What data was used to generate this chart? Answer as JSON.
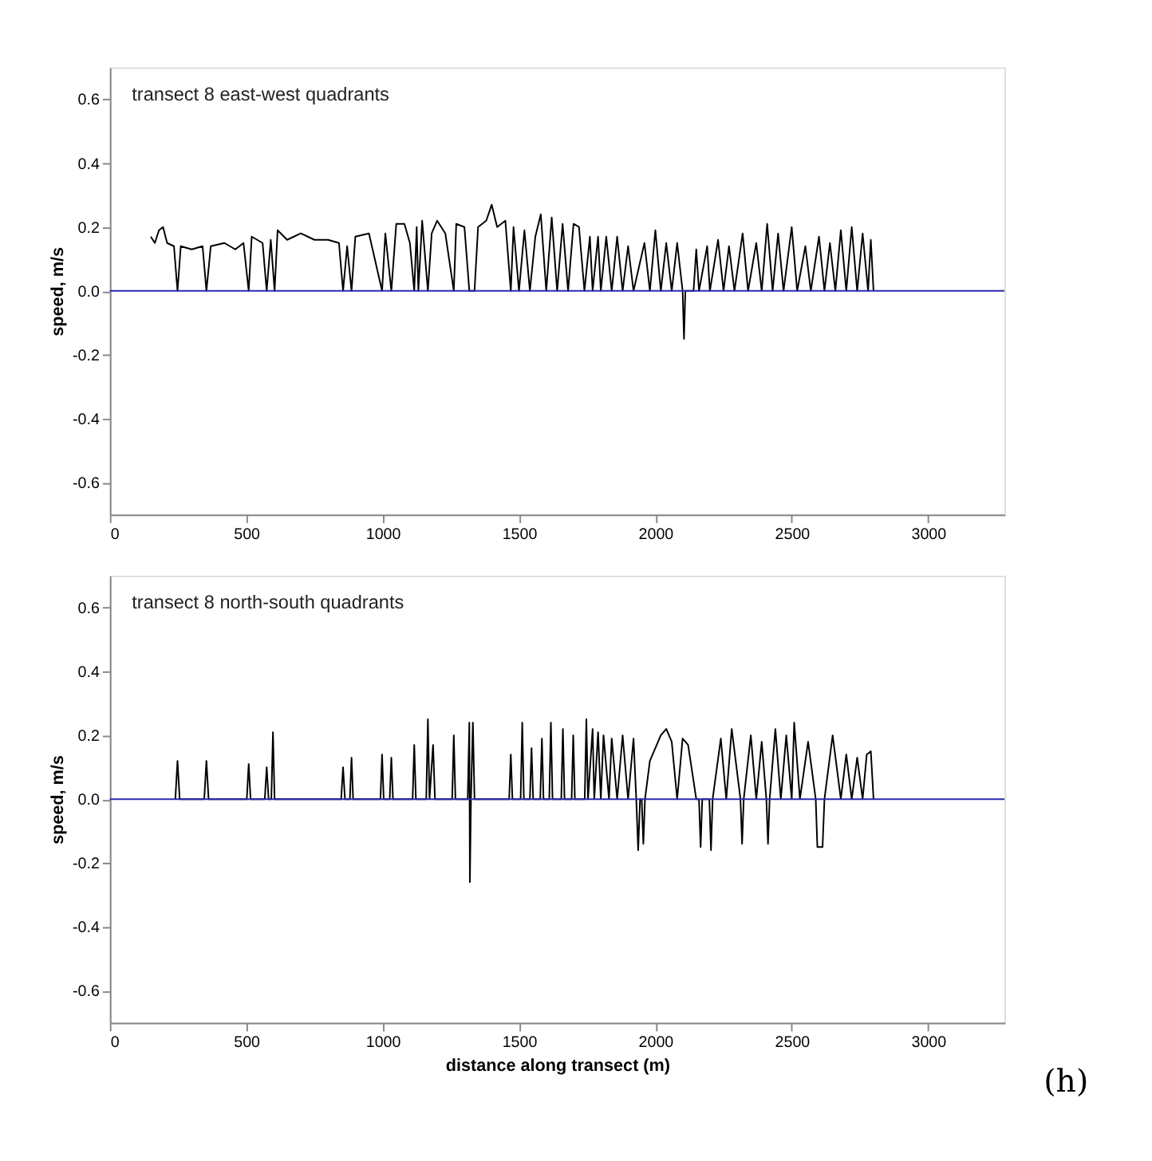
{
  "chart_data": [
    {
      "type": "line",
      "title": "transect 8 east-west quadrants",
      "ylabel": "speed, m/s",
      "xlim": [
        0,
        3280
      ],
      "xticks": [
        0,
        500,
        1000,
        1500,
        2000,
        2500,
        3000
      ],
      "ylim": [
        -0.7,
        0.7
      ],
      "yticks": [
        {
          "value": -0.6,
          "label": "-0.6"
        },
        {
          "value": -0.4,
          "label": "-0.4"
        },
        {
          "value": -0.2,
          "label": "-0.2"
        },
        {
          "value": 0,
          "label": "0.0"
        },
        {
          "value": 0.2,
          "label": "0.2"
        },
        {
          "value": 0.4,
          "label": "0.4"
        },
        {
          "value": 0.6,
          "label": "0.6"
        }
      ],
      "grid": false,
      "marker": "none",
      "line_style": "solid",
      "ref_lines": [
        {
          "axis": "y",
          "value": 0,
          "color": "#2b2bb0"
        }
      ],
      "series": [
        {
          "color": "#000000",
          "x": [
            150,
            165,
            180,
            195,
            210,
            235,
            248,
            260,
            300,
            340,
            354,
            370,
            420,
            460,
            490,
            509,
            520,
            560,
            575,
            590,
            604,
            615,
            650,
            700,
            750,
            800,
            840,
            855,
            870,
            886,
            900,
            950,
            998,
            1010,
            1032,
            1050,
            1080,
            1100,
            1116,
            1125,
            1131,
            1145,
            1166,
            1180,
            1200,
            1230,
            1261,
            1270,
            1300,
            1318,
            1337,
            1350,
            1380,
            1400,
            1420,
            1450,
            1470,
            1480,
            1500,
            1520,
            1540,
            1560,
            1580,
            1600,
            1620,
            1640,
            1660,
            1680,
            1700,
            1720,
            1740,
            1760,
            1770,
            1790,
            1800,
            1820,
            1840,
            1860,
            1880,
            1900,
            1920,
            1960,
            1980,
            2000,
            2020,
            2040,
            2060,
            2080,
            2100,
            2105,
            2110,
            2140,
            2150,
            2160,
            2190,
            2200,
            2230,
            2250,
            2270,
            2290,
            2320,
            2340,
            2370,
            2390,
            2410,
            2430,
            2450,
            2470,
            2500,
            2520,
            2550,
            2570,
            2600,
            2620,
            2640,
            2660,
            2680,
            2700,
            2720,
            2740,
            2760,
            2780,
            2790,
            2800
          ],
          "values": [
            0.17,
            0.15,
            0.19,
            0.2,
            0.15,
            0.14,
            0.0,
            0.14,
            0.13,
            0.14,
            0.0,
            0.14,
            0.15,
            0.13,
            0.15,
            0.0,
            0.17,
            0.15,
            0.0,
            0.16,
            0.0,
            0.19,
            0.16,
            0.18,
            0.16,
            0.16,
            0.15,
            0.0,
            0.14,
            0.0,
            0.17,
            0.18,
            0.0,
            0.18,
            0.0,
            0.21,
            0.21,
            0.15,
            0.0,
            0.2,
            0.0,
            0.22,
            0.0,
            0.18,
            0.22,
            0.18,
            0.0,
            0.21,
            0.2,
            0.0,
            0.0,
            0.2,
            0.22,
            0.27,
            0.2,
            0.22,
            0.0,
            0.2,
            0.0,
            0.19,
            0.0,
            0.17,
            0.24,
            0.0,
            0.23,
            0.0,
            0.21,
            0.0,
            0.21,
            0.2,
            0.0,
            0.17,
            0.0,
            0.17,
            0.0,
            0.17,
            0.0,
            0.17,
            0.0,
            0.14,
            0.0,
            0.15,
            0.0,
            0.19,
            0.0,
            0.15,
            0.0,
            0.15,
            0.0,
            -0.15,
            0.0,
            0.0,
            0.13,
            0.0,
            0.14,
            0.0,
            0.16,
            0.0,
            0.14,
            0.0,
            0.18,
            0.0,
            0.15,
            0.0,
            0.21,
            0.0,
            0.18,
            0.0,
            0.2,
            0.0,
            0.14,
            0.0,
            0.17,
            0.0,
            0.15,
            0.0,
            0.19,
            0.0,
            0.2,
            0.0,
            0.18,
            0.0,
            0.16,
            0.0
          ]
        }
      ]
    },
    {
      "type": "line",
      "title": "transect 8 north-south quadrants",
      "xlabel": "distance along transect (m)",
      "ylabel": "speed, m/s",
      "xlim": [
        0,
        3280
      ],
      "xticks": [
        0,
        500,
        1000,
        1500,
        2000,
        2500,
        3000
      ],
      "ylim": [
        -0.7,
        0.7
      ],
      "yticks": [
        {
          "value": -0.6,
          "label": "-0.6"
        },
        {
          "value": -0.4,
          "label": "-0.4"
        },
        {
          "value": -0.2,
          "label": "-0.2"
        },
        {
          "value": 0,
          "label": "0.0"
        },
        {
          "value": 0.2,
          "label": "0.2"
        },
        {
          "value": 0.4,
          "label": "0.4"
        },
        {
          "value": 0.6,
          "label": "0.6"
        }
      ],
      "grid": false,
      "marker": "none",
      "line_style": "solid",
      "ref_lines": [
        {
          "axis": "y",
          "value": 0,
          "color": "#2b2bb0"
        }
      ],
      "annotations": [
        "(h)"
      ],
      "series": [
        {
          "color": "#000000",
          "x": [
            240,
            248,
            256,
            346,
            354,
            362,
            502,
            509,
            516,
            568,
            575,
            582,
            592,
            598,
            604,
            848,
            855,
            862,
            880,
            886,
            892,
            992,
            998,
            1004,
            1026,
            1032,
            1038,
            1110,
            1116,
            1122,
            1160,
            1166,
            1172,
            1185,
            1192,
            1255,
            1261,
            1267,
            1312,
            1318,
            1320,
            1324,
            1331,
            1337,
            1343,
            1464,
            1470,
            1476,
            1506,
            1512,
            1518,
            1540,
            1546,
            1552,
            1578,
            1584,
            1590,
            1611,
            1617,
            1623,
            1655,
            1661,
            1667,
            1693,
            1699,
            1705,
            1741,
            1747,
            1753,
            1770,
            1776,
            1790,
            1800,
            1810,
            1830,
            1840,
            1860,
            1880,
            1900,
            1920,
            1930,
            1937,
            1944,
            1950,
            1956,
            1962,
            1980,
            2000,
            2020,
            2040,
            2060,
            2080,
            2100,
            2120,
            2150,
            2160,
            2166,
            2172,
            2198,
            2204,
            2210,
            2240,
            2260,
            2280,
            2312,
            2318,
            2324,
            2350,
            2370,
            2390,
            2407,
            2413,
            2419,
            2440,
            2460,
            2480,
            2500,
            2509,
            2530,
            2560,
            2588,
            2594,
            2613,
            2620,
            2650,
            2680,
            2700,
            2720,
            2740,
            2760,
            2775,
            2790,
            2800
          ],
          "values": [
            0.0,
            0.12,
            0.0,
            0.0,
            0.12,
            0.0,
            0.0,
            0.11,
            0.0,
            0.0,
            0.1,
            0.0,
            0.0,
            0.21,
            0.0,
            0.0,
            0.1,
            0.0,
            0.0,
            0.13,
            0.0,
            0.0,
            0.14,
            0.0,
            0.0,
            0.13,
            0.0,
            0.0,
            0.17,
            0.0,
            0.0,
            0.25,
            0.0,
            0.17,
            0.0,
            0.0,
            0.2,
            0.0,
            0.0,
            0.24,
            -0.26,
            0.0,
            0.24,
            0.0,
            0.0,
            0.0,
            0.14,
            0.0,
            0.0,
            0.24,
            0.0,
            0.0,
            0.16,
            0.0,
            0.0,
            0.19,
            0.0,
            0.0,
            0.24,
            0.0,
            0.0,
            0.22,
            0.0,
            0.0,
            0.2,
            0.0,
            0.0,
            0.25,
            0.0,
            0.22,
            0.0,
            0.21,
            0.0,
            0.2,
            0.0,
            0.19,
            0.0,
            0.2,
            0.0,
            0.19,
            0.0,
            -0.16,
            0.0,
            0.0,
            -0.14,
            0.0,
            0.12,
            0.16,
            0.2,
            0.22,
            0.18,
            0.0,
            0.19,
            0.17,
            0.0,
            0.0,
            -0.15,
            0.0,
            0.0,
            -0.16,
            0.0,
            0.19,
            0.0,
            0.22,
            0.0,
            -0.14,
            0.0,
            0.2,
            0.0,
            0.18,
            0.0,
            -0.14,
            0.0,
            0.22,
            0.0,
            0.2,
            0.0,
            0.24,
            0.0,
            0.18,
            0.0,
            -0.15,
            -0.15,
            0.0,
            0.2,
            0.0,
            0.14,
            0.0,
            0.13,
            0.0,
            0.14,
            0.15,
            0.0
          ]
        }
      ]
    }
  ]
}
